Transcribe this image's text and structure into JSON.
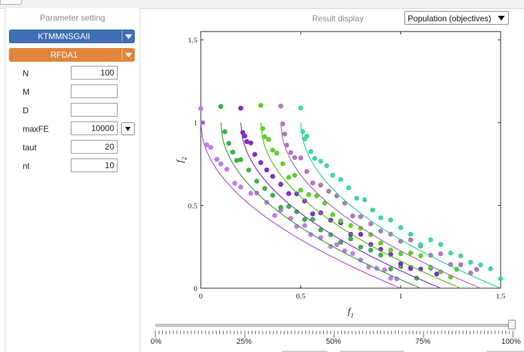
{
  "left_panel": {
    "title": "Parameter setting",
    "algorithm": "KTMMNSGAII",
    "problem": "RFDA1",
    "params": [
      {
        "name": "N",
        "value": "100"
      },
      {
        "name": "M",
        "value": ""
      },
      {
        "name": "D",
        "value": ""
      },
      {
        "name": "maxFE",
        "value": "10000",
        "has_dropdown": true
      },
      {
        "name": "taut",
        "value": "20"
      },
      {
        "name": "nt",
        "value": "10"
      }
    ]
  },
  "result_panel": {
    "title": "Result display",
    "view_select": "Population (objectives)"
  },
  "chart_data": {
    "type": "scatter",
    "title": "",
    "xlabel": "f1",
    "ylabel": "f2",
    "xlim": [
      0,
      1.5
    ],
    "ylim": [
      0,
      1.55
    ],
    "xticks": [
      "0",
      "0.5",
      "1",
      "1.5"
    ],
    "yticks": [
      "0",
      "0.5",
      "1",
      "1.5"
    ],
    "grid": false,
    "series": [
      {
        "color": "#c07be8",
        "line_color": "#a54fe0",
        "x0": 0.0,
        "x_end": 1.0,
        "points_x": [
          0.0,
          0.01,
          0.03,
          0.05,
          0.08,
          0.1,
          0.13,
          0.17,
          0.2,
          0.25,
          0.28,
          0.33,
          0.37,
          0.4,
          0.45,
          0.48,
          0.52,
          0.55,
          0.6,
          0.65,
          0.68,
          0.72,
          0.76,
          0.8,
          0.84,
          0.88,
          0.92,
          0.95,
          0.98
        ]
      },
      {
        "color": "#3fb04a",
        "line_color": "#2fa03a",
        "x0": 0.1,
        "x_end": 1.1,
        "points_x": [
          0.1,
          0.12,
          0.14,
          0.16,
          0.18,
          0.2,
          0.24,
          0.28,
          0.32,
          0.36,
          0.4,
          0.44,
          0.48,
          0.52,
          0.56,
          0.6,
          0.65,
          0.7,
          0.75,
          0.8,
          0.85,
          0.9,
          0.95,
          1.0,
          1.05,
          1.08
        ]
      },
      {
        "color": "#7f2fc0",
        "line_color": "#7f2fc0",
        "x0": 0.2,
        "x_end": 1.2,
        "points_x": [
          0.2,
          0.21,
          0.22,
          0.23,
          0.25,
          0.27,
          0.3,
          0.33,
          0.36,
          0.4,
          0.44,
          0.48,
          0.52,
          0.56,
          0.6,
          0.65,
          0.7,
          0.75,
          0.8,
          0.85,
          0.9,
          0.95,
          1.0,
          1.05,
          1.1,
          1.15,
          1.18
        ]
      },
      {
        "color": "#5fcf2e",
        "line_color": "#4fbf20",
        "x0": 0.3,
        "x_end": 1.3,
        "points_x": [
          0.3,
          0.31,
          0.32,
          0.34,
          0.36,
          0.38,
          0.41,
          0.44,
          0.47,
          0.5,
          0.54,
          0.58,
          0.62,
          0.66,
          0.7,
          0.75,
          0.8,
          0.85,
          0.9,
          0.95,
          1.0,
          1.05,
          1.1,
          1.15,
          1.2,
          1.25,
          1.28
        ]
      },
      {
        "color": "#b07ab8",
        "line_color": "#a565b0",
        "x0": 0.4,
        "x_end": 1.4,
        "points_x": [
          0.4,
          0.41,
          0.42,
          0.43,
          0.45,
          0.47,
          0.5,
          0.53,
          0.56,
          0.6,
          0.64,
          0.68,
          0.72,
          0.76,
          0.8,
          0.85,
          0.9,
          0.95,
          1.0,
          1.05,
          1.1,
          1.15,
          1.2,
          1.25,
          1.3,
          1.35,
          1.38
        ]
      },
      {
        "color": "#3fd7a5",
        "line_color": "#2fcf9a",
        "x0": 0.5,
        "x_end": 1.5,
        "points_x": [
          0.5,
          0.51,
          0.52,
          0.53,
          0.55,
          0.57,
          0.6,
          0.63,
          0.66,
          0.7,
          0.74,
          0.78,
          0.82,
          0.86,
          0.9,
          0.95,
          1.0,
          1.05,
          1.1,
          1.15,
          1.2,
          1.25,
          1.3,
          1.35,
          1.4,
          1.45,
          1.5
        ]
      }
    ]
  },
  "slider": {
    "value_percent": 100,
    "labels": [
      "0%",
      "25%",
      "50%",
      "75%",
      "100%"
    ]
  }
}
